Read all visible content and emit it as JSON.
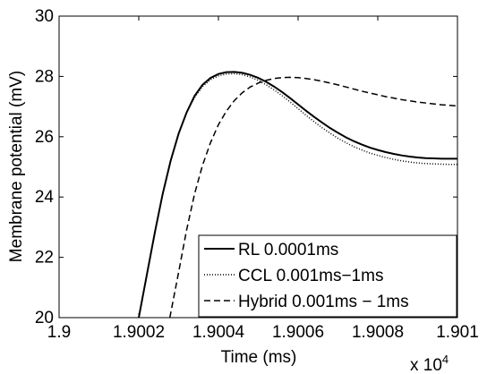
{
  "chart_data": {
    "type": "line",
    "xlabel": "Time (ms)",
    "ylabel": "Membrane potential (mV)",
    "x_multiplier": {
      "base": "x 10",
      "exponent": "4"
    },
    "xlim": [
      1.9,
      1.901
    ],
    "ylim": [
      20,
      30
    ],
    "x_ticks": [
      1.9,
      1.9002,
      1.9004,
      1.9006,
      1.9008,
      1.901
    ],
    "x_tick_labels": [
      "1.9",
      "1.9002",
      "1.9004",
      "1.9006",
      "1.9008",
      "1.901"
    ],
    "y_ticks": [
      20,
      22,
      24,
      26,
      28,
      30
    ],
    "y_tick_labels": [
      "20",
      "22",
      "24",
      "26",
      "28",
      "30"
    ],
    "grid": false,
    "legend_position": "bottom-right",
    "series": [
      {
        "name": "RL 0.0001ms",
        "style": "solid",
        "x": [
          1.9002,
          1.90022,
          1.90024,
          1.90026,
          1.90028,
          1.9003,
          1.90032,
          1.90034,
          1.90036,
          1.90038,
          1.9004,
          1.90042,
          1.90044,
          1.90046,
          1.90048,
          1.9005,
          1.90052,
          1.90054,
          1.90056,
          1.90058,
          1.9006,
          1.90062,
          1.90064,
          1.90066,
          1.90068,
          1.9007,
          1.90072,
          1.90074,
          1.90076,
          1.90078,
          1.9008,
          1.90082,
          1.90084,
          1.90086,
          1.90088,
          1.9009,
          1.90092,
          1.90094,
          1.90096,
          1.90098,
          1.901
        ],
        "y": [
          20.0,
          21.4,
          22.8,
          24.1,
          25.2,
          26.1,
          26.8,
          27.35,
          27.72,
          27.95,
          28.08,
          28.14,
          28.15,
          28.12,
          28.05,
          27.95,
          27.82,
          27.66,
          27.48,
          27.28,
          27.07,
          26.86,
          26.66,
          26.47,
          26.29,
          26.13,
          25.98,
          25.85,
          25.74,
          25.64,
          25.56,
          25.49,
          25.43,
          25.38,
          25.34,
          25.31,
          25.29,
          25.28,
          25.27,
          25.27,
          25.27
        ]
      },
      {
        "name": "CCL 0.001ms−1ms",
        "style": "dotted",
        "x": [
          1.9002,
          1.90022,
          1.90024,
          1.90026,
          1.90028,
          1.9003,
          1.90032,
          1.90034,
          1.90036,
          1.90038,
          1.9004,
          1.90042,
          1.90044,
          1.90046,
          1.90048,
          1.9005,
          1.90052,
          1.90054,
          1.90056,
          1.90058,
          1.9006,
          1.90062,
          1.90064,
          1.90066,
          1.90068,
          1.9007,
          1.90072,
          1.90074,
          1.90076,
          1.90078,
          1.9008,
          1.90082,
          1.90084,
          1.90086,
          1.90088,
          1.9009,
          1.90092,
          1.90094,
          1.90096,
          1.90098,
          1.901
        ],
        "y": [
          20.0,
          21.4,
          22.8,
          24.1,
          25.2,
          26.1,
          26.8,
          27.3,
          27.66,
          27.89,
          28.02,
          28.08,
          28.09,
          28.06,
          27.98,
          27.87,
          27.72,
          27.55,
          27.36,
          27.15,
          26.93,
          26.71,
          26.5,
          26.3,
          26.12,
          25.95,
          25.8,
          25.67,
          25.56,
          25.46,
          25.38,
          25.31,
          25.25,
          25.2,
          25.16,
          25.13,
          25.11,
          25.1,
          25.09,
          25.08,
          25.08
        ]
      },
      {
        "name": "Hybrid 0.001ms − 1ms",
        "style": "dashed",
        "x": [
          1.900278,
          1.9003,
          1.90032,
          1.90034,
          1.90036,
          1.90038,
          1.9004,
          1.90042,
          1.90044,
          1.90046,
          1.90048,
          1.9005,
          1.90052,
          1.90054,
          1.90056,
          1.90058,
          1.9006,
          1.90062,
          1.90064,
          1.90066,
          1.90068,
          1.9007,
          1.90072,
          1.90074,
          1.90076,
          1.90078,
          1.9008,
          1.90082,
          1.90084,
          1.90086,
          1.90088,
          1.9009,
          1.90092,
          1.90094,
          1.90096,
          1.90098,
          1.901
        ],
        "y": [
          20.0,
          21.5,
          22.9,
          24.1,
          25.05,
          25.8,
          26.4,
          26.85,
          27.2,
          27.46,
          27.65,
          27.78,
          27.87,
          27.93,
          27.96,
          27.97,
          27.96,
          27.93,
          27.89,
          27.84,
          27.78,
          27.72,
          27.65,
          27.58,
          27.51,
          27.45,
          27.39,
          27.33,
          27.28,
          27.23,
          27.19,
          27.15,
          27.12,
          27.09,
          27.06,
          27.04,
          27.02
        ]
      }
    ]
  }
}
